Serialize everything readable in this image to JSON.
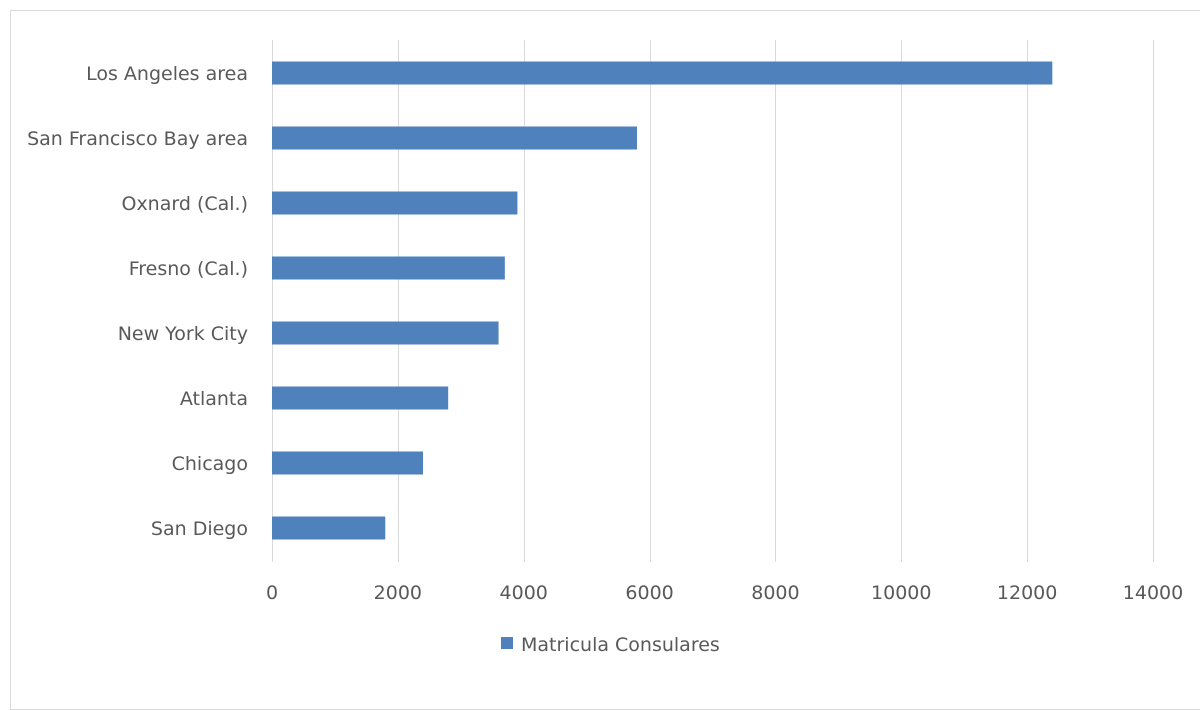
{
  "chart_data": {
    "type": "bar",
    "orientation": "horizontal",
    "categories": [
      "Los Angeles area",
      "San Francisco Bay area",
      "Oxnard (Cal.)",
      "Fresno (Cal.)",
      "New York City",
      "Atlanta",
      "Chicago",
      "San Diego"
    ],
    "series": [
      {
        "name": "Matricula Consulares",
        "values": [
          12400,
          5800,
          3900,
          3700,
          3600,
          2800,
          2400,
          1800
        ]
      }
    ],
    "xticks": [
      "0",
      "2000",
      "4000",
      "6000",
      "8000",
      "10000",
      "12000",
      "14000"
    ],
    "xlim": [
      0,
      14000
    ],
    "grid": true,
    "legend_position": "bottom",
    "title": "",
    "xlabel": "",
    "ylabel": ""
  },
  "colors": {
    "bar": "#4f81bd",
    "grid": "#d9d9d9",
    "text": "#595959"
  }
}
